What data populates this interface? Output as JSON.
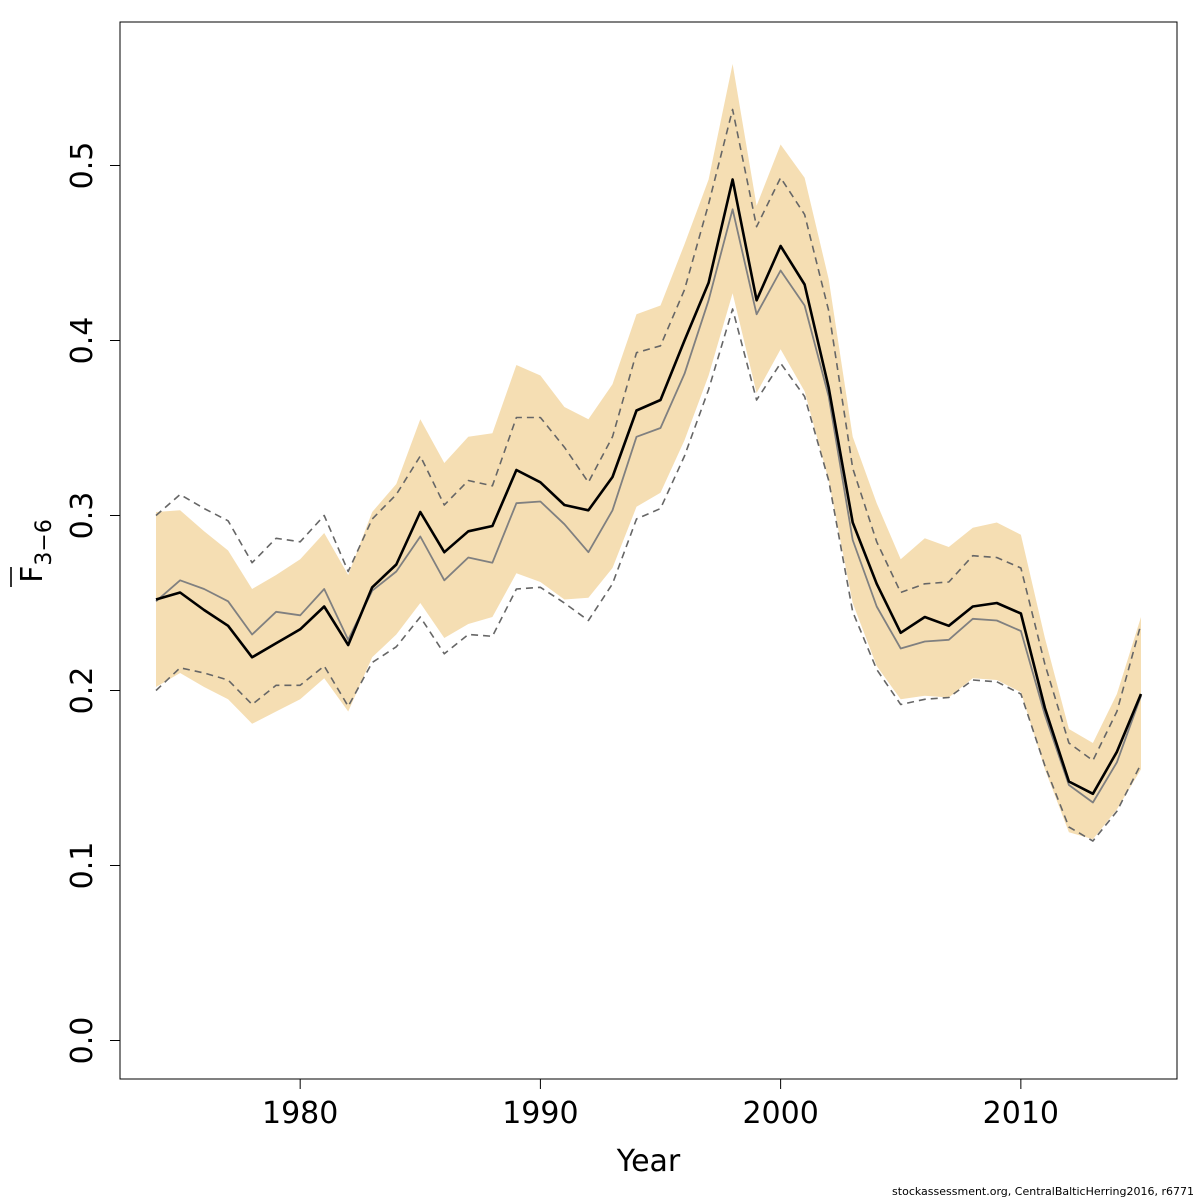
{
  "chart_data": {
    "type": "line",
    "xlabel": "Year",
    "ylabel": {
      "main": "F",
      "sub": "3−6"
    },
    "xlim": [
      1972.5,
      2016.5
    ],
    "ylim": [
      -0.022,
      0.582
    ],
    "xticks": [
      1980,
      1990,
      2000,
      2010
    ],
    "yticks": [
      0.0,
      0.1,
      0.2,
      0.3,
      0.4,
      0.5
    ],
    "ytick_labels": [
      "0.0",
      "0.1",
      "0.2",
      "0.3",
      "0.4",
      "0.5"
    ],
    "grid": false,
    "colors": {
      "band": "#f5deb3",
      "estimate": "#000000",
      "alt_estimate": "#808080",
      "alt_bounds": "#666666"
    },
    "x": [
      1974,
      1975,
      1976,
      1977,
      1978,
      1979,
      1980,
      1981,
      1982,
      1983,
      1984,
      1985,
      1986,
      1987,
      1988,
      1989,
      1990,
      1991,
      1992,
      1993,
      1994,
      1995,
      1996,
      1997,
      1998,
      1999,
      2000,
      2001,
      2002,
      2003,
      2004,
      2005,
      2006,
      2007,
      2008,
      2009,
      2010,
      2011,
      2012,
      2013,
      2014,
      2015
    ],
    "series": [
      {
        "role": "band_upper",
        "style": "fill",
        "values": [
          0.302,
          0.303,
          0.291,
          0.28,
          0.258,
          0.266,
          0.275,
          0.29,
          0.266,
          0.302,
          0.318,
          0.355,
          0.33,
          0.345,
          0.347,
          0.386,
          0.38,
          0.362,
          0.355,
          0.375,
          0.415,
          0.42,
          0.455,
          0.492,
          0.558,
          0.477,
          0.512,
          0.493,
          0.435,
          0.345,
          0.307,
          0.275,
          0.287,
          0.282,
          0.293,
          0.296,
          0.289,
          0.23,
          0.178,
          0.17,
          0.198,
          0.242
        ]
      },
      {
        "role": "band_lower",
        "style": "fill",
        "values": [
          0.202,
          0.21,
          0.202,
          0.195,
          0.181,
          0.188,
          0.195,
          0.207,
          0.188,
          0.219,
          0.232,
          0.25,
          0.23,
          0.238,
          0.242,
          0.267,
          0.262,
          0.252,
          0.253,
          0.27,
          0.305,
          0.313,
          0.343,
          0.38,
          0.427,
          0.37,
          0.395,
          0.371,
          0.32,
          0.25,
          0.214,
          0.195,
          0.197,
          0.196,
          0.207,
          0.206,
          0.199,
          0.155,
          0.119,
          0.115,
          0.132,
          0.155
        ]
      },
      {
        "role": "alt_upper",
        "style": "dashed",
        "values": [
          0.3,
          0.312,
          0.304,
          0.297,
          0.273,
          0.287,
          0.285,
          0.3,
          0.268,
          0.298,
          0.312,
          0.334,
          0.306,
          0.32,
          0.317,
          0.356,
          0.356,
          0.339,
          0.319,
          0.345,
          0.393,
          0.397,
          0.429,
          0.478,
          0.532,
          0.465,
          0.493,
          0.472,
          0.417,
          0.327,
          0.285,
          0.256,
          0.261,
          0.262,
          0.277,
          0.276,
          0.27,
          0.215,
          0.17,
          0.16,
          0.188,
          0.238
        ]
      },
      {
        "role": "alt_lower",
        "style": "dashed",
        "values": [
          0.2,
          0.213,
          0.21,
          0.206,
          0.192,
          0.203,
          0.203,
          0.214,
          0.191,
          0.216,
          0.225,
          0.242,
          0.221,
          0.232,
          0.231,
          0.258,
          0.259,
          0.25,
          0.24,
          0.261,
          0.298,
          0.304,
          0.334,
          0.372,
          0.418,
          0.366,
          0.387,
          0.368,
          0.32,
          0.245,
          0.212,
          0.192,
          0.195,
          0.196,
          0.206,
          0.205,
          0.198,
          0.157,
          0.122,
          0.114,
          0.131,
          0.158
        ]
      },
      {
        "role": "alt_estimate",
        "style": "solid-thin",
        "values": [
          0.251,
          0.263,
          0.258,
          0.251,
          0.232,
          0.245,
          0.243,
          0.258,
          0.229,
          0.257,
          0.268,
          0.288,
          0.263,
          0.276,
          0.273,
          0.307,
          0.308,
          0.295,
          0.279,
          0.303,
          0.345,
          0.35,
          0.381,
          0.423,
          0.475,
          0.415,
          0.44,
          0.42,
          0.368,
          0.286,
          0.248,
          0.224,
          0.228,
          0.229,
          0.241,
          0.24,
          0.234,
          0.186,
          0.146,
          0.136,
          0.159,
          0.197
        ]
      },
      {
        "role": "estimate",
        "style": "solid-thick",
        "values": [
          0.252,
          0.256,
          0.246,
          0.237,
          0.219,
          0.227,
          0.235,
          0.248,
          0.226,
          0.259,
          0.272,
          0.302,
          0.279,
          0.291,
          0.294,
          0.326,
          0.319,
          0.306,
          0.303,
          0.322,
          0.36,
          0.366,
          0.4,
          0.433,
          0.492,
          0.423,
          0.454,
          0.432,
          0.373,
          0.296,
          0.261,
          0.233,
          0.242,
          0.237,
          0.248,
          0.25,
          0.244,
          0.19,
          0.148,
          0.141,
          0.165,
          0.198
        ]
      }
    ]
  },
  "footer": "stockassessment.org, CentralBalticHerring2016, r6771"
}
